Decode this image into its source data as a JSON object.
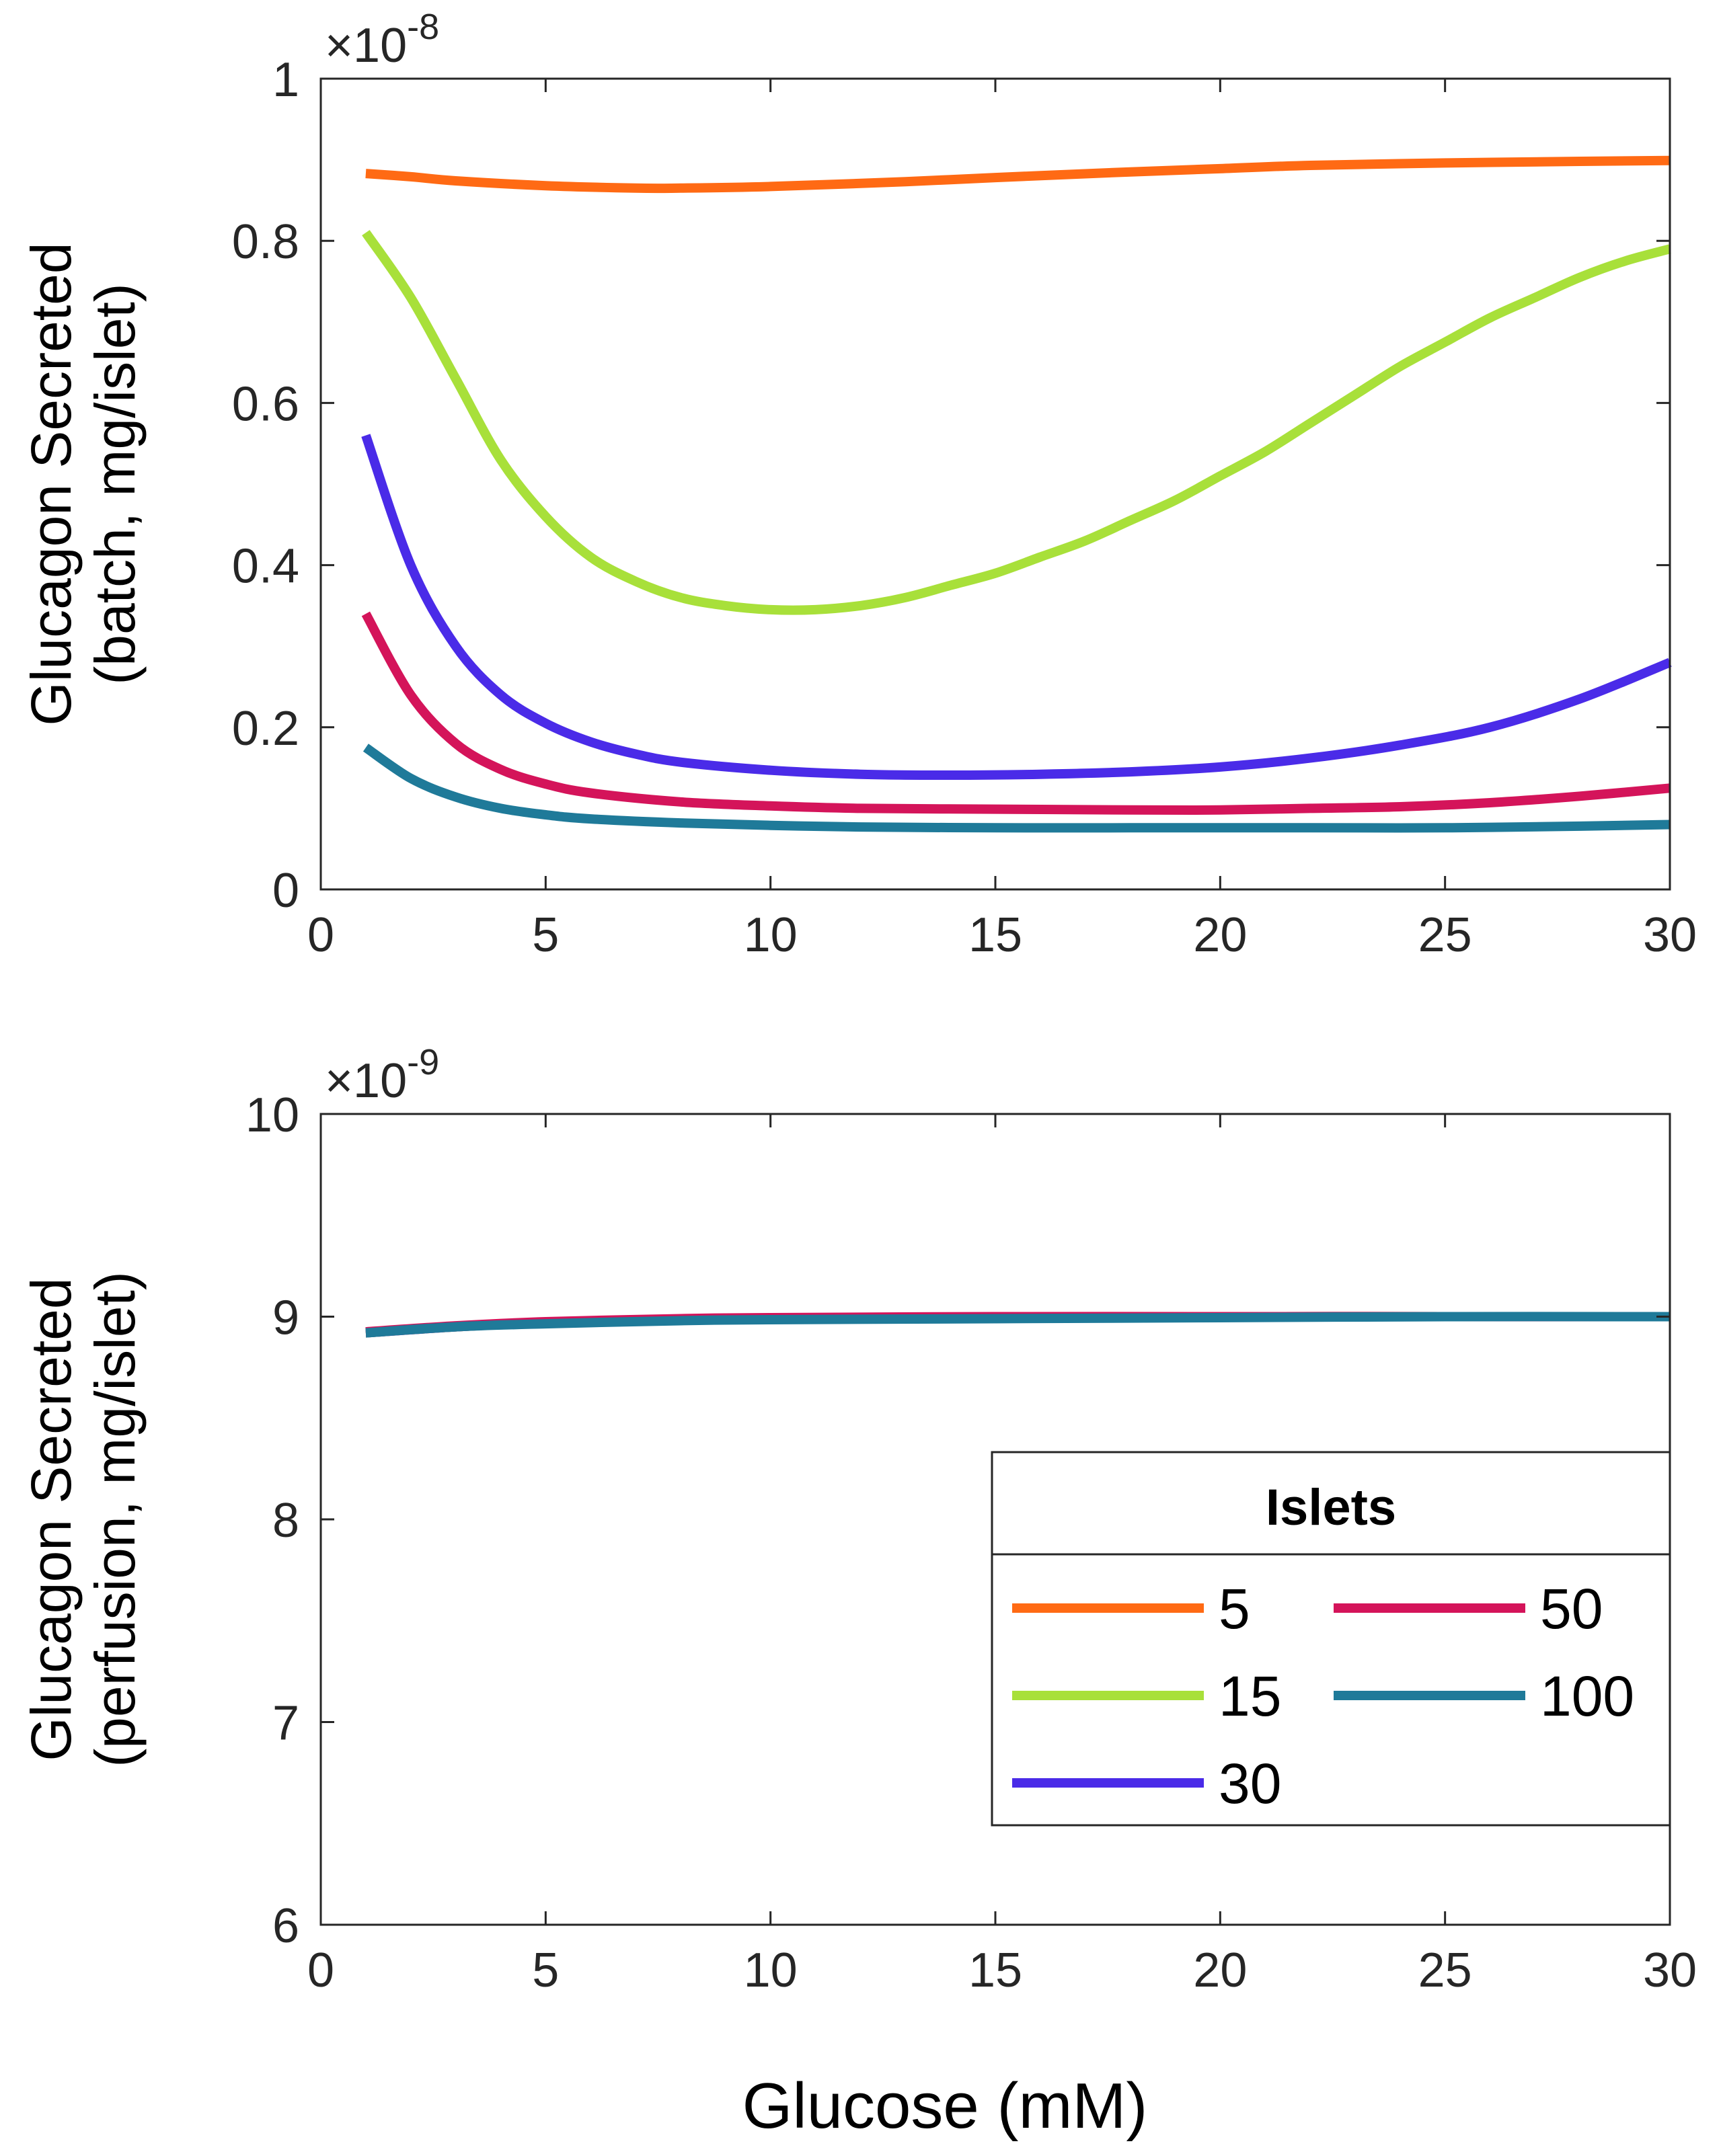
{
  "chart_data": [
    {
      "type": "line",
      "title": "",
      "xlabel": "",
      "ylabel": [
        "Glucagon Secreted",
        "(batch, mg/islet)"
      ],
      "y_exponent": "×10",
      "y_exponent_power": "-8",
      "xlim": [
        0,
        30
      ],
      "ylim": [
        0,
        1
      ],
      "xticks": [
        0,
        5,
        10,
        15,
        20,
        25,
        30
      ],
      "xtick_labels": [
        "0",
        "5",
        "10",
        "15",
        "20",
        "25",
        "30"
      ],
      "yticks": [
        0,
        0.2,
        0.4,
        0.6,
        0.8,
        1
      ],
      "ytick_labels": [
        "0",
        "0.2",
        "0.4",
        "0.6",
        "0.8",
        "1"
      ],
      "grid": false,
      "series": [
        {
          "name": "5",
          "color": "#FF6A14",
          "x": [
            1,
            2,
            3,
            5,
            7,
            8,
            10,
            13,
            15,
            18,
            20,
            22,
            25,
            28,
            30
          ],
          "y": [
            0.883,
            0.879,
            0.874,
            0.868,
            0.865,
            0.865,
            0.867,
            0.873,
            0.878,
            0.885,
            0.889,
            0.893,
            0.896,
            0.898,
            0.899
          ]
        },
        {
          "name": "15",
          "color": "#A8E03A",
          "x": [
            1,
            2,
            3,
            4,
            5,
            6,
            7,
            8,
            9,
            10,
            11,
            12,
            13,
            14,
            15,
            16,
            17,
            18,
            19,
            20,
            21,
            22,
            23,
            24,
            25,
            26,
            27,
            28,
            29,
            30
          ],
          "y": [
            0.81,
            0.73,
            0.63,
            0.53,
            0.46,
            0.41,
            0.38,
            0.36,
            0.35,
            0.345,
            0.345,
            0.35,
            0.36,
            0.375,
            0.39,
            0.41,
            0.43,
            0.455,
            0.48,
            0.51,
            0.54,
            0.575,
            0.61,
            0.645,
            0.675,
            0.705,
            0.73,
            0.755,
            0.775,
            0.79
          ]
        },
        {
          "name": "30",
          "color": "#4A2BE8",
          "x": [
            1,
            2,
            3,
            4,
            5,
            6,
            7,
            8,
            10,
            12,
            14,
            16,
            18,
            20,
            22,
            24,
            26,
            28,
            30
          ],
          "y": [
            0.56,
            0.4,
            0.3,
            0.24,
            0.205,
            0.182,
            0.167,
            0.157,
            0.147,
            0.142,
            0.141,
            0.142,
            0.145,
            0.151,
            0.162,
            0.178,
            0.2,
            0.235,
            0.28
          ]
        },
        {
          "name": "50",
          "color": "#D4145A",
          "x": [
            1,
            2,
            3,
            4,
            5,
            6,
            8,
            10,
            12,
            15,
            18,
            20,
            22,
            24,
            26,
            28,
            30
          ],
          "y": [
            0.34,
            0.24,
            0.18,
            0.148,
            0.13,
            0.119,
            0.108,
            0.103,
            0.1,
            0.099,
            0.098,
            0.098,
            0.1,
            0.102,
            0.107,
            0.115,
            0.125
          ]
        },
        {
          "name": "100",
          "color": "#1F7A99",
          "x": [
            1,
            2,
            3,
            4,
            5,
            6,
            8,
            10,
            12,
            15,
            18,
            20,
            22,
            25,
            28,
            30
          ],
          "y": [
            0.175,
            0.137,
            0.114,
            0.1,
            0.092,
            0.087,
            0.082,
            0.079,
            0.077,
            0.076,
            0.076,
            0.076,
            0.076,
            0.076,
            0.078,
            0.08
          ]
        }
      ]
    },
    {
      "type": "line",
      "title": "",
      "xlabel": "Glucose (mM)",
      "ylabel": [
        "Glucagon Secreted",
        "(perfusion, mg/islet)"
      ],
      "y_exponent": "×10",
      "y_exponent_power": "-9",
      "xlim": [
        0,
        30
      ],
      "ylim": [
        6,
        10
      ],
      "xticks": [
        0,
        5,
        10,
        15,
        20,
        25,
        30
      ],
      "xtick_labels": [
        "0",
        "5",
        "10",
        "15",
        "20",
        "25",
        "30"
      ],
      "yticks": [
        6,
        7,
        8,
        9,
        10
      ],
      "ytick_labels": [
        "6",
        "7",
        "8",
        "9",
        "10"
      ],
      "grid": false,
      "legend": {
        "title": "Islets",
        "position": "lower-right",
        "columns": 2
      },
      "series": [
        {
          "name": "5",
          "color": "#FF6A14",
          "x": [
            1,
            3,
            5,
            8,
            10,
            15,
            20,
            25,
            30
          ],
          "y": [
            8.92,
            8.95,
            8.97,
            8.985,
            8.99,
            8.995,
            9.0,
            9.0,
            9.0
          ]
        },
        {
          "name": "15",
          "color": "#A8E03A",
          "x": [
            1,
            3,
            5,
            8,
            10,
            15,
            20,
            25,
            30
          ],
          "y": [
            8.92,
            8.95,
            8.97,
            8.985,
            8.99,
            8.995,
            9.0,
            9.0,
            9.0
          ]
        },
        {
          "name": "30",
          "color": "#4A2BE8",
          "x": [
            1,
            3,
            5,
            8,
            10,
            15,
            20,
            25,
            30
          ],
          "y": [
            8.92,
            8.95,
            8.97,
            8.985,
            8.99,
            8.995,
            9.0,
            9.0,
            9.0
          ]
        },
        {
          "name": "50",
          "color": "#D4145A",
          "x": [
            1,
            3,
            5,
            8,
            10,
            15,
            20,
            25,
            30
          ],
          "y": [
            8.925,
            8.955,
            8.975,
            8.99,
            8.995,
            9.0,
            9.0,
            9.0,
            9.0
          ]
        },
        {
          "name": "100",
          "color": "#1F7A99",
          "x": [
            1,
            3,
            5,
            8,
            10,
            15,
            20,
            25,
            30
          ],
          "y": [
            8.92,
            8.95,
            8.965,
            8.98,
            8.985,
            8.99,
            8.995,
            9.0,
            9.0
          ]
        }
      ]
    }
  ]
}
